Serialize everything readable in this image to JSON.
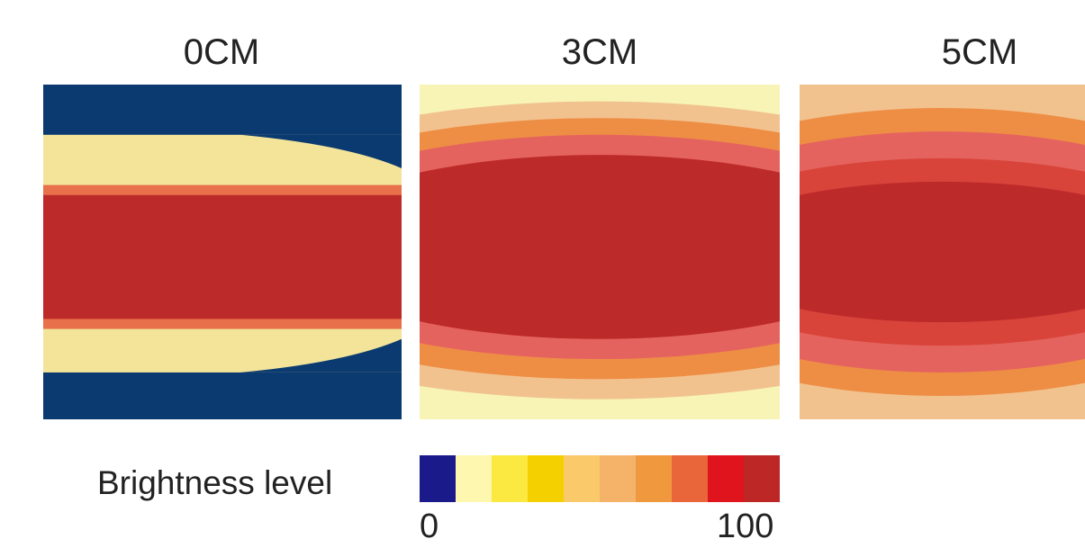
{
  "chart_data": [
    {
      "type": "heatmap",
      "title": "0CM",
      "rows": [
        {
          "from": 0.0,
          "to": 0.15,
          "level": 0
        },
        {
          "from": 0.15,
          "to": 0.3,
          "level": 2
        },
        {
          "from": 0.3,
          "to": 0.33,
          "level": 7
        },
        {
          "from": 0.33,
          "to": 0.7,
          "level": 10
        },
        {
          "from": 0.7,
          "to": 0.73,
          "level": 7
        },
        {
          "from": 0.73,
          "to": 0.86,
          "level": 2
        },
        {
          "from": 0.86,
          "to": 1.0,
          "level": 0
        }
      ]
    },
    {
      "type": "heatmap",
      "title": "3CM",
      "rows": [
        {
          "from": 0.0,
          "to": 0.05,
          "level": 1
        },
        {
          "from": 0.05,
          "to": 0.1,
          "level": 4
        },
        {
          "from": 0.1,
          "to": 0.15,
          "level": 6
        },
        {
          "from": 0.15,
          "to": 0.21,
          "level": 8
        },
        {
          "from": 0.21,
          "to": 0.76,
          "level": 10
        },
        {
          "from": 0.76,
          "to": 0.82,
          "level": 8
        },
        {
          "from": 0.82,
          "to": 0.88,
          "level": 6
        },
        {
          "from": 0.88,
          "to": 0.94,
          "level": 4
        },
        {
          "from": 0.94,
          "to": 1.0,
          "level": 1
        }
      ]
    },
    {
      "type": "heatmap",
      "title": "5CM",
      "rows": [
        {
          "from": 0.0,
          "to": 0.07,
          "level": 4
        },
        {
          "from": 0.07,
          "to": 0.14,
          "level": 6
        },
        {
          "from": 0.14,
          "to": 0.22,
          "level": 8
        },
        {
          "from": 0.22,
          "to": 0.29,
          "level": 9
        },
        {
          "from": 0.29,
          "to": 0.71,
          "level": 10
        },
        {
          "from": 0.71,
          "to": 0.78,
          "level": 9
        },
        {
          "from": 0.78,
          "to": 0.86,
          "level": 8
        },
        {
          "from": 0.86,
          "to": 0.93,
          "level": 6
        },
        {
          "from": 0.93,
          "to": 1.0,
          "level": 4
        }
      ]
    }
  ],
  "legend": {
    "label": "Brightness level",
    "min": "0",
    "max": "100",
    "colors": [
      "#1b1a8a",
      "#fdf7b0",
      "#fbe840",
      "#f5d000",
      "#f9c96a",
      "#f5b36a",
      "#f0983e",
      "#e8663a",
      "#e0141c",
      "#bd2726"
    ]
  },
  "panel_colors": [
    "#0b3a70",
    "#f7f4b6",
    "#f3e49a",
    "#f1d48e",
    "#f2c28e",
    "#f0a24e",
    "#ee8e45",
    "#e8704a",
    "#e5635e",
    "#d8443a",
    "#bd2a2a"
  ]
}
